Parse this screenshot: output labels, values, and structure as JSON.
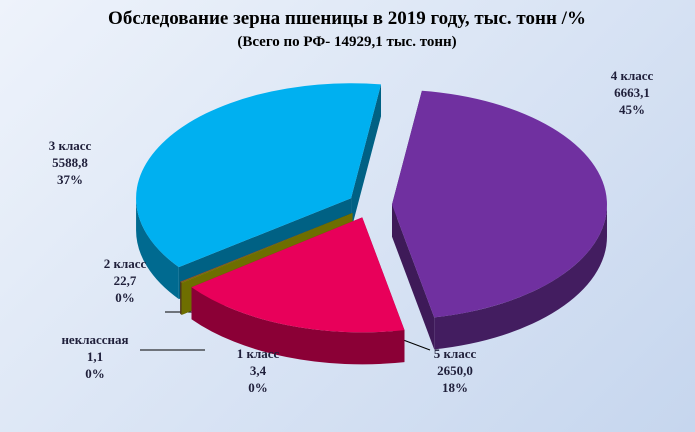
{
  "chart_data": {
    "type": "pie",
    "title": "Обследование зерна пшеницы в 2019 году, тыс. тонн /%",
    "subtitle": "(Всего по РФ- 14929,1 тыс. тонн)",
    "categories": [
      "4 класс",
      "5 класс",
      "1 класс",
      "неклассная",
      "2 класс",
      "3 класс"
    ],
    "values": [
      6663.1,
      2650.0,
      3.4,
      1.1,
      22.7,
      5588.8
    ],
    "value_labels": [
      "6663,1",
      "2650,0",
      "3,4",
      "1,1",
      "22,7",
      "5588,8"
    ],
    "percents": [
      45,
      18,
      0,
      0,
      0,
      37
    ],
    "percent_labels": [
      "45%",
      "18%",
      "0%",
      "0%",
      "0%",
      "37%"
    ],
    "colors": [
      "#7030a0",
      "#e8005a",
      "#c8c800",
      "#1e8c3c",
      "#8b5a2b",
      "#00b0f0"
    ]
  }
}
